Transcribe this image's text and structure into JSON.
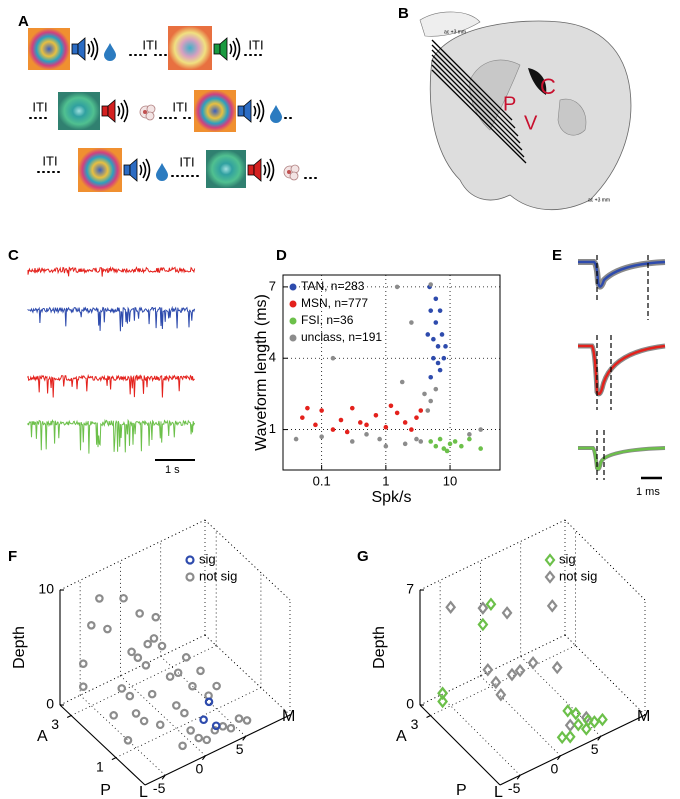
{
  "panel_labels": [
    "A",
    "B",
    "C",
    "D",
    "E",
    "F",
    "G"
  ],
  "panel_a": {
    "iti_labels": [
      "ITI",
      "ITI",
      "ITI",
      "ITI",
      "ITI",
      "ITI"
    ]
  },
  "panel_b": {
    "region_labels": [
      "C",
      "P",
      "V"
    ],
    "section_labels": [
      "ac +3 mm",
      "ac +3 mm"
    ]
  },
  "panel_c": {
    "scale_label": "1 s"
  },
  "panel_e": {
    "scale_label": "1 ms"
  },
  "chart_data": [
    {
      "type": "scatter",
      "xlabel": "Spk/s",
      "ylabel": "Waveform length (ms)",
      "xscale": "log",
      "xlim": [
        0.025,
        60
      ],
      "ylim": [
        -0.7,
        7.5
      ],
      "xticks": [
        0.1,
        1,
        10
      ],
      "yticks": [
        1,
        4,
        7
      ],
      "grid": true,
      "legend": "upper left",
      "series": [
        {
          "name": "TAN, n=283",
          "color": "#2e4bad",
          "x": [
            4.5,
            5,
            5.5,
            6,
            6.5,
            7,
            7.5,
            8,
            5,
            6,
            7,
            5.5,
            6.5,
            8.5,
            4.8
          ],
          "y": [
            5,
            6,
            4,
            5.5,
            4.5,
            3.5,
            5,
            4,
            3.2,
            6.5,
            6,
            4.8,
            3.8,
            4.5,
            7
          ]
        },
        {
          "name": "MSN, n=777",
          "color": "#e4211c",
          "x": [
            0.05,
            0.08,
            0.1,
            0.15,
            0.2,
            0.3,
            0.5,
            0.7,
            1,
            1.5,
            2,
            2.5,
            3,
            3.5,
            0.4,
            0.06,
            1.2,
            0.25
          ],
          "y": [
            1.5,
            1.2,
            1.8,
            1.0,
            1.4,
            1.9,
            1.2,
            1.6,
            1.1,
            1.7,
            1.3,
            1.0,
            1.5,
            1.8,
            1.3,
            1.9,
            2.0,
            0.9
          ]
        },
        {
          "name": "FSI, n=36",
          "color": "#6cc04a",
          "x": [
            5,
            6,
            7,
            8,
            10,
            12,
            15,
            20,
            30,
            9
          ],
          "y": [
            0.5,
            0.3,
            0.6,
            0.2,
            0.4,
            0.5,
            0.3,
            0.6,
            0.2,
            0.1
          ]
        },
        {
          "name": "unclass, n=191",
          "color": "#8c8c8c",
          "x": [
            0.04,
            0.1,
            0.3,
            0.8,
            1,
            1.5,
            2,
            3,
            4,
            4.5,
            5,
            5,
            6,
            2.5,
            0.5,
            0.15,
            1.8,
            3.5,
            20,
            30
          ],
          "y": [
            0.6,
            0.7,
            0.5,
            0.6,
            0.3,
            7.0,
            0.4,
            0.6,
            2.5,
            1.8,
            2.2,
            7.1,
            2.7,
            5.5,
            0.8,
            4.0,
            3.0,
            0.5,
            0.8,
            1.0
          ]
        }
      ]
    },
    {
      "type": "scatter3d",
      "zlabel": "Depth",
      "x_end_labels": [
        "L",
        "M"
      ],
      "y_end_labels": [
        "A",
        "P"
      ],
      "marker": "circle",
      "xlim": [
        -7.5,
        10.5
      ],
      "ylim": [
        -0.3,
        3.5
      ],
      "zlim": [
        0,
        10
      ],
      "xticks": [
        -5,
        0,
        5
      ],
      "yticks": [
        1,
        3
      ],
      "zticks": [
        0,
        10
      ],
      "grid": true,
      "legend": "upper right",
      "series": [
        {
          "name": "sig",
          "color": "#2e4bad",
          "x": [
            2,
            3,
            3.5
          ],
          "y": [
            0.5,
            0.3,
            0.8
          ],
          "z": [
            1,
            0.5,
            1.5
          ]
        },
        {
          "name": "not sig",
          "color": "#8c8c8c",
          "x": [
            -6,
            -6,
            -5,
            -5,
            -4,
            -4,
            -3,
            -3,
            -2,
            -2,
            -1,
            -1,
            0,
            0,
            0,
            1,
            1,
            1,
            2,
            2,
            2,
            3,
            3,
            3,
            4,
            4,
            4,
            5,
            5,
            6,
            -6,
            -5,
            -4,
            -3,
            -2,
            -1,
            0,
            1,
            2,
            3
          ],
          "y": [
            3,
            3,
            3,
            2,
            3,
            2,
            3,
            2,
            2,
            1,
            3,
            2,
            1,
            2,
            3,
            1,
            2,
            0,
            1,
            2,
            0,
            1,
            0,
            2,
            1,
            0,
            2,
            0,
            1,
            0,
            1,
            1,
            1,
            1,
            0,
            0,
            0,
            3,
            3,
            3
          ],
          "z": [
            2,
            4,
            7,
            1,
            9,
            3,
            6,
            2,
            5,
            1,
            8,
            4,
            2,
            6,
            3,
            1,
            5,
            0.5,
            3,
            2,
            1,
            4,
            1,
            2,
            1.5,
            0.5,
            3,
            1,
            2,
            0.5,
            1,
            3,
            2,
            4,
            1,
            2,
            1,
            6,
            3,
            5
          ]
        }
      ]
    },
    {
      "type": "scatter3d",
      "zlabel": "Depth",
      "x_end_labels": [
        "L",
        "M"
      ],
      "y_end_labels": [
        "A",
        "P"
      ],
      "marker": "diamond",
      "xlim": [
        -7.5,
        10.5
      ],
      "ylim": [
        -0.3,
        3.5
      ],
      "zlim": [
        0,
        7
      ],
      "xticks": [
        -5,
        0,
        5
      ],
      "yticks": [
        3
      ],
      "zticks": [
        0,
        7
      ],
      "grid": true,
      "legend": "upper right",
      "series": [
        {
          "name": "sig",
          "color": "#6cc04a",
          "x": [
            -6,
            -6,
            1,
            2,
            3,
            3,
            4,
            4,
            5,
            5,
            6,
            -1,
            0
          ],
          "y": [
            3,
            3,
            0,
            0,
            0.5,
            0,
            0,
            0.5,
            0,
            0.3,
            0,
            3,
            3
          ],
          "z": [
            0.5,
            1,
            0.5,
            0.3,
            1,
            0.8,
            0.3,
            0.6,
            0.5,
            0.2,
            0.4,
            4,
            5
          ]
        },
        {
          "name": "not sig",
          "color": "#8c8c8c",
          "x": [
            -6,
            -5,
            -3,
            -2,
            -1,
            0,
            1,
            2,
            3,
            4,
            -4,
            0,
            2,
            5
          ],
          "y": [
            3,
            3,
            2,
            2,
            3,
            1,
            2,
            0,
            1,
            0,
            1,
            2,
            3,
            2
          ],
          "z": [
            1,
            6,
            3,
            2,
            5,
            4,
            2,
            1,
            3,
            1,
            3,
            2,
            4,
            5
          ]
        }
      ]
    }
  ]
}
